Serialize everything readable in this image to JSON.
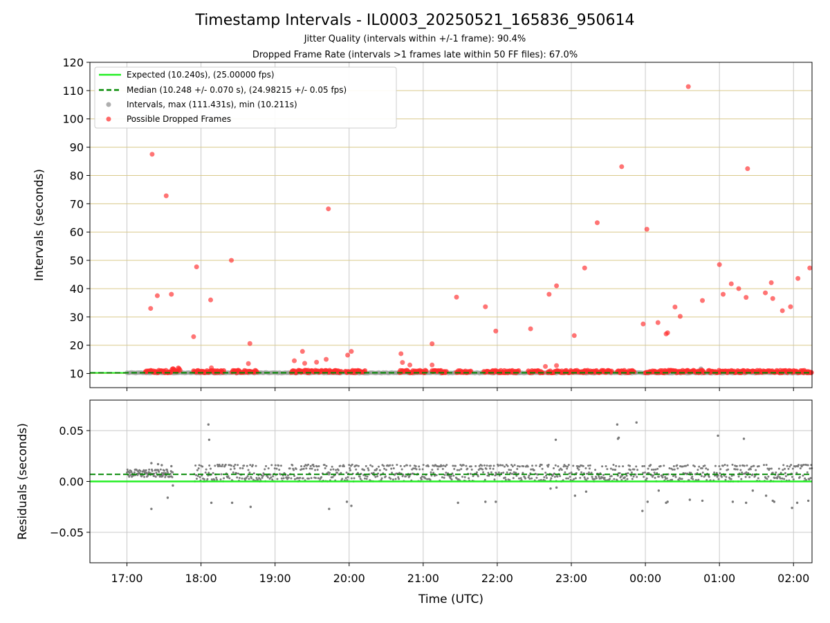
{
  "figure": {
    "title": "Timestamp Intervals - IL0003_20250521_165836_950614",
    "subtitle_1": "Jitter Quality (intervals within +/-1 frame): 90.4%",
    "subtitle_2": "Dropped Frame Rate (intervals >1 frames late within 50 FF files): 67.0%",
    "colors": {
      "expected": "#22ee22",
      "median": "#008800",
      "interval_points": "#9a9a9a",
      "dropped_points": "#ff2a2a",
      "residual_points": "#7a7a7a",
      "hgrid_top": "#d9c98a",
      "grid": "#c8c8c8"
    }
  },
  "chart_data": [
    {
      "type": "scatter",
      "panel": "intervals",
      "ylabel": "Intervals (seconds)",
      "ylim": [
        5,
        120
      ],
      "xlim_hours": [
        16.5,
        26.25
      ],
      "x_unit": "hours UTC since 00:00 on 2025-05-21",
      "y_ticks": [
        "10",
        "20",
        "30",
        "40",
        "50",
        "60",
        "70",
        "80",
        "90",
        "100",
        "110",
        "120"
      ],
      "grid": "horizontal and vertical",
      "legend_placement": "upper-left",
      "legend": [
        "Expected (10.240s), (25.00000 fps)",
        "Median (10.248 +/- 0.070 s), (24.98215 +/- 0.05 fps)",
        "Intervals, max (111.431s), min (10.211s)",
        "Possible Dropped Frames"
      ],
      "expected_value": 10.24,
      "median_value": 10.248,
      "dropped_baseline_segments": [
        [
          17.25,
          17.72
        ],
        [
          17.9,
          18.32
        ],
        [
          18.42,
          18.76
        ],
        [
          19.22,
          19.9
        ],
        [
          19.95,
          20.22
        ],
        [
          20.68,
          21.05
        ],
        [
          21.12,
          21.32
        ],
        [
          21.45,
          21.65
        ],
        [
          21.82,
          22.3
        ],
        [
          22.42,
          22.62
        ],
        [
          22.68,
          23.55
        ],
        [
          23.62,
          23.85
        ],
        [
          24.0,
          24.8
        ],
        [
          24.85,
          26.25
        ]
      ],
      "dropped_points": [
        [
          17.32,
          33.0
        ],
        [
          17.34,
          87.5
        ],
        [
          17.41,
          37.5
        ],
        [
          17.53,
          72.8
        ],
        [
          17.6,
          38.0
        ],
        [
          17.9,
          23.0
        ],
        [
          17.94,
          47.7
        ],
        [
          18.13,
          36.0
        ],
        [
          18.14,
          12.0
        ],
        [
          18.41,
          50.0
        ],
        [
          18.64,
          13.5
        ],
        [
          18.66,
          20.6
        ],
        [
          19.26,
          14.5
        ],
        [
          19.37,
          17.8
        ],
        [
          19.4,
          13.6
        ],
        [
          19.56,
          14.0
        ],
        [
          19.69,
          15.0
        ],
        [
          19.72,
          68.2
        ],
        [
          19.98,
          16.5
        ],
        [
          20.03,
          17.8
        ],
        [
          20.7,
          17.0
        ],
        [
          20.72,
          13.9
        ],
        [
          20.82,
          13.0
        ],
        [
          21.12,
          20.5
        ],
        [
          21.12,
          13.0
        ],
        [
          21.45,
          37.0
        ],
        [
          21.84,
          33.6
        ],
        [
          21.98,
          25.0
        ],
        [
          22.45,
          25.8
        ],
        [
          22.65,
          12.5
        ],
        [
          22.7,
          38.0
        ],
        [
          22.8,
          41.0
        ],
        [
          22.8,
          12.8
        ],
        [
          23.04,
          23.4
        ],
        [
          23.18,
          47.3
        ],
        [
          23.35,
          63.3
        ],
        [
          23.68,
          83.1
        ],
        [
          23.97,
          27.5
        ],
        [
          24.02,
          61.0
        ],
        [
          24.17,
          28.0
        ],
        [
          24.28,
          24.0
        ],
        [
          24.3,
          24.4
        ],
        [
          24.4,
          33.5
        ],
        [
          24.47,
          30.2
        ],
        [
          24.58,
          111.4
        ],
        [
          24.77,
          35.8
        ],
        [
          25.0,
          48.5
        ],
        [
          25.05,
          38.0
        ],
        [
          25.16,
          41.7
        ],
        [
          25.26,
          40.0
        ],
        [
          25.38,
          82.4
        ],
        [
          25.36,
          36.9
        ],
        [
          25.62,
          38.5
        ],
        [
          25.7,
          42.1
        ],
        [
          25.72,
          36.5
        ],
        [
          25.85,
          32.2
        ],
        [
          25.96,
          33.6
        ],
        [
          26.06,
          43.6
        ],
        [
          26.22,
          47.3
        ]
      ],
      "interval_outliers": [
        [
          24.75,
          11.6
        ]
      ]
    },
    {
      "type": "scatter",
      "panel": "residuals",
      "xlabel": "Time (UTC)",
      "ylabel": "Residuals (seconds)",
      "ylim": [
        -0.08,
        0.08
      ],
      "xlim_hours": [
        16.5,
        26.25
      ],
      "x_ticks": [
        "17:00",
        "18:00",
        "19:00",
        "20:00",
        "21:00",
        "22:00",
        "23:00",
        "00:00",
        "01:00",
        "02:00"
      ],
      "x_tick_hours": [
        17,
        18,
        19,
        20,
        21,
        22,
        23,
        24,
        25,
        26
      ],
      "y_ticks": [
        "0.05",
        "0.00",
        "−0.05"
      ],
      "y_tick_values": [
        0.05,
        0.0,
        -0.05
      ],
      "expected_value": 0.0,
      "median_value": 0.007,
      "dense_band": {
        "start_hour": 17.9,
        "end_hour": 26.25,
        "low": 0.0,
        "high": 0.016,
        "upper_levels": [
          0.012,
          0.0165
        ]
      },
      "early_segment": {
        "start_hour": 17.0,
        "end_hour": 17.62,
        "low": 0.004,
        "high": 0.012
      },
      "gap_hours": [
        [
          17.65,
          17.9
        ],
        [
          23.9,
          23.96
        ],
        [
          24.88,
          24.92
        ],
        [
          25.55,
          25.6
        ]
      ],
      "outliers": [
        [
          17.33,
          -0.027
        ],
        [
          17.33,
          0.018
        ],
        [
          17.42,
          0.017
        ],
        [
          17.47,
          0.016
        ],
        [
          17.55,
          -0.016
        ],
        [
          17.6,
          0.015
        ],
        [
          17.62,
          -0.004
        ],
        [
          18.1,
          0.056
        ],
        [
          18.11,
          0.041
        ],
        [
          18.14,
          -0.021
        ],
        [
          18.42,
          -0.021
        ],
        [
          18.67,
          -0.025
        ],
        [
          19.73,
          -0.027
        ],
        [
          19.97,
          -0.02
        ],
        [
          20.03,
          -0.024
        ],
        [
          21.47,
          -0.021
        ],
        [
          21.84,
          -0.02
        ],
        [
          21.98,
          -0.02
        ],
        [
          22.72,
          -0.007
        ],
        [
          22.8,
          -0.006
        ],
        [
          22.79,
          0.041
        ],
        [
          23.05,
          -0.014
        ],
        [
          23.2,
          -0.01
        ],
        [
          23.62,
          0.056
        ],
        [
          23.63,
          0.042
        ],
        [
          23.64,
          0.043
        ],
        [
          23.88,
          0.058
        ],
        [
          23.96,
          -0.029
        ],
        [
          24.03,
          -0.02
        ],
        [
          24.18,
          -0.009
        ],
        [
          24.28,
          -0.021
        ],
        [
          24.3,
          -0.02
        ],
        [
          24.6,
          -0.018
        ],
        [
          24.77,
          -0.019
        ],
        [
          24.98,
          0.045
        ],
        [
          25.18,
          -0.02
        ],
        [
          25.33,
          0.042
        ],
        [
          25.36,
          -0.021
        ],
        [
          25.45,
          -0.009
        ],
        [
          25.63,
          -0.014
        ],
        [
          25.72,
          -0.019
        ],
        [
          25.74,
          -0.02
        ],
        [
          25.98,
          -0.026
        ],
        [
          26.05,
          -0.021
        ],
        [
          26.2,
          -0.019
        ]
      ]
    }
  ]
}
